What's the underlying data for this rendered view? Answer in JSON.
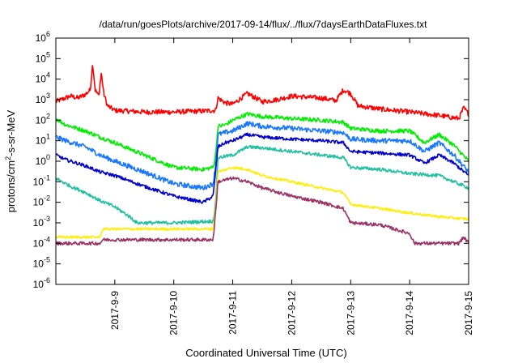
{
  "chart_data": {
    "type": "line",
    "title": "/data/run/goesPlots/archive/2017-09-14/flux/../flux/7daysEarthDataFluxes.txt",
    "xlabel": "Coordinated Universal Time (UTC)",
    "ylabel_base": "protons/cm",
    "ylabel_sup": "2",
    "ylabel_rest": "-s-sr-MeV",
    "yscale": "log",
    "ylim": [
      1e-06,
      1000000.0
    ],
    "xlim": [
      "2017-09-08T00:00",
      "2017-09-15T00:00"
    ],
    "yticks": [
      {
        "value": 1e-06,
        "base": "10",
        "exp": "-6"
      },
      {
        "value": 1e-05,
        "base": "10",
        "exp": "-5"
      },
      {
        "value": 0.0001,
        "base": "10",
        "exp": "-4"
      },
      {
        "value": 0.001,
        "base": "10",
        "exp": "-3"
      },
      {
        "value": 0.01,
        "base": "10",
        "exp": "-2"
      },
      {
        "value": 0.1,
        "base": "10",
        "exp": "-1"
      },
      {
        "value": 1.0,
        "base": "10",
        "exp": "0"
      },
      {
        "value": 10.0,
        "base": "10",
        "exp": "1"
      },
      {
        "value": 100.0,
        "base": "10",
        "exp": "2"
      },
      {
        "value": 1000.0,
        "base": "10",
        "exp": "3"
      },
      {
        "value": 10000.0,
        "base": "10",
        "exp": "4"
      },
      {
        "value": 100000.0,
        "base": "10",
        "exp": "5"
      },
      {
        "value": 1000000.0,
        "base": "10",
        "exp": "6"
      }
    ],
    "xticks": [
      {
        "value": "2017-09-09T00:00",
        "label": "2017-9-9"
      },
      {
        "value": "2017-09-10T00:00",
        "label": "2017-9-10"
      },
      {
        "value": "2017-09-11T00:00",
        "label": "2017-9-11"
      },
      {
        "value": "2017-09-12T00:00",
        "label": "2017-9-12"
      },
      {
        "value": "2017-09-13T00:00",
        "label": "2017-9-13"
      },
      {
        "value": "2017-09-14T00:00",
        "label": "2017-9-14"
      },
      {
        "value": "2017-09-15T00:00",
        "label": "2017-9-15"
      }
    ],
    "grid": false,
    "legend": "none",
    "series": [
      {
        "color": "#ff0000",
        "noise": 0.12,
        "points": [
          [
            "2017-09-08T00:00",
            800
          ],
          [
            "2017-09-08T06:00",
            1500
          ],
          [
            "2017-09-08T09:00",
            1200
          ],
          [
            "2017-09-08T12:00",
            1800
          ],
          [
            "2017-09-08T14:00",
            3000
          ],
          [
            "2017-09-08T15:00",
            60000
          ],
          [
            "2017-09-08T16:00",
            3000
          ],
          [
            "2017-09-08T17:30",
            1500
          ],
          [
            "2017-09-08T18:30",
            20000
          ],
          [
            "2017-09-08T19:30",
            2000
          ],
          [
            "2017-09-08T21:00",
            500
          ],
          [
            "2017-09-09T00:00",
            300
          ],
          [
            "2017-09-09T12:00",
            250
          ],
          [
            "2017-09-10T00:00",
            250
          ],
          [
            "2017-09-10T12:00",
            280
          ],
          [
            "2017-09-10T17:00",
            300
          ],
          [
            "2017-09-10T18:00",
            1200
          ],
          [
            "2017-09-10T21:00",
            700
          ],
          [
            "2017-09-11T00:00",
            600
          ],
          [
            "2017-09-11T06:00",
            2000
          ],
          [
            "2017-09-11T12:00",
            800
          ],
          [
            "2017-09-11T18:00",
            1000
          ],
          [
            "2017-09-12T00:00",
            1500
          ],
          [
            "2017-09-12T12:00",
            1200
          ],
          [
            "2017-09-12T18:00",
            900
          ],
          [
            "2017-09-12T21:00",
            3000
          ],
          [
            "2017-09-13T00:00",
            2000
          ],
          [
            "2017-09-13T03:00",
            500
          ],
          [
            "2017-09-13T12:00",
            350
          ],
          [
            "2017-09-14T00:00",
            250
          ],
          [
            "2017-09-14T12:00",
            170
          ],
          [
            "2017-09-14T20:00",
            120
          ],
          [
            "2017-09-14T22:00",
            400
          ],
          [
            "2017-09-15T00:00",
            200
          ]
        ]
      },
      {
        "color": "#00ee00",
        "noise": 0.1,
        "points": [
          [
            "2017-09-08T00:00",
            120
          ],
          [
            "2017-09-08T04:00",
            60
          ],
          [
            "2017-09-08T12:00",
            30
          ],
          [
            "2017-09-08T18:00",
            15
          ],
          [
            "2017-09-09T00:00",
            8
          ],
          [
            "2017-09-09T12:00",
            2
          ],
          [
            "2017-09-10T00:00",
            0.5
          ],
          [
            "2017-09-10T12:00",
            0.4
          ],
          [
            "2017-09-10T16:00",
            0.5
          ],
          [
            "2017-09-10T17:00",
            2
          ],
          [
            "2017-09-10T18:00",
            50
          ],
          [
            "2017-09-10T21:00",
            60
          ],
          [
            "2017-09-11T00:00",
            100
          ],
          [
            "2017-09-11T06:00",
            200
          ],
          [
            "2017-09-11T12:00",
            150
          ],
          [
            "2017-09-12T00:00",
            120
          ],
          [
            "2017-09-12T12:00",
            100
          ],
          [
            "2017-09-12T21:00",
            80
          ],
          [
            "2017-09-13T00:00",
            40
          ],
          [
            "2017-09-13T12:00",
            30
          ],
          [
            "2017-09-14T00:00",
            30
          ],
          [
            "2017-09-14T06:00",
            8
          ],
          [
            "2017-09-14T12:00",
            20
          ],
          [
            "2017-09-14T18:00",
            6
          ],
          [
            "2017-09-15T00:00",
            1
          ]
        ]
      },
      {
        "color": "#1a78ff",
        "noise": 0.12,
        "points": [
          [
            "2017-09-08T00:00",
            15
          ],
          [
            "2017-09-08T04:00",
            10
          ],
          [
            "2017-09-08T12:00",
            5
          ],
          [
            "2017-09-08T18:00",
            2
          ],
          [
            "2017-09-09T00:00",
            1
          ],
          [
            "2017-09-09T12:00",
            0.3
          ],
          [
            "2017-09-10T00:00",
            0.08
          ],
          [
            "2017-09-10T12:00",
            0.05
          ],
          [
            "2017-09-10T16:00",
            0.08
          ],
          [
            "2017-09-10T17:00",
            0.6
          ],
          [
            "2017-09-10T18:00",
            20
          ],
          [
            "2017-09-10T21:00",
            25
          ],
          [
            "2017-09-11T00:00",
            30
          ],
          [
            "2017-09-11T06:00",
            70
          ],
          [
            "2017-09-11T12:00",
            50
          ],
          [
            "2017-09-12T00:00",
            40
          ],
          [
            "2017-09-12T12:00",
            30
          ],
          [
            "2017-09-12T21:00",
            25
          ],
          [
            "2017-09-13T00:00",
            12
          ],
          [
            "2017-09-13T12:00",
            10
          ],
          [
            "2017-09-14T00:00",
            10
          ],
          [
            "2017-09-14T06:00",
            3
          ],
          [
            "2017-09-14T12:00",
            8
          ],
          [
            "2017-09-14T18:00",
            2
          ],
          [
            "2017-09-15T00:00",
            0.3
          ]
        ]
      },
      {
        "color": "#0000cc",
        "noise": 0.08,
        "points": [
          [
            "2017-09-08T00:00",
            2
          ],
          [
            "2017-09-08T04:00",
            1.2
          ],
          [
            "2017-09-08T12:00",
            0.6
          ],
          [
            "2017-09-08T18:00",
            0.3
          ],
          [
            "2017-09-09T00:00",
            0.2
          ],
          [
            "2017-09-09T12:00",
            0.06
          ],
          [
            "2017-09-10T00:00",
            0.02
          ],
          [
            "2017-09-10T12:00",
            0.01
          ],
          [
            "2017-09-10T16:00",
            0.02
          ],
          [
            "2017-09-10T17:00",
            0.3
          ],
          [
            "2017-09-10T18:00",
            5
          ],
          [
            "2017-09-10T21:00",
            8
          ],
          [
            "2017-09-11T00:00",
            10
          ],
          [
            "2017-09-11T06:00",
            20
          ],
          [
            "2017-09-11T12:00",
            15
          ],
          [
            "2017-09-12T00:00",
            12
          ],
          [
            "2017-09-12T12:00",
            10
          ],
          [
            "2017-09-12T21:00",
            8
          ],
          [
            "2017-09-13T00:00",
            3
          ],
          [
            "2017-09-13T12:00",
            2.5
          ],
          [
            "2017-09-14T00:00",
            2
          ],
          [
            "2017-09-14T06:00",
            0.8
          ],
          [
            "2017-09-14T12:00",
            2
          ],
          [
            "2017-09-14T18:00",
            0.8
          ],
          [
            "2017-09-15T00:00",
            0.2
          ]
        ]
      },
      {
        "color": "#20c0a0",
        "noise": 0.08,
        "points": [
          [
            "2017-09-08T00:00",
            0.15
          ],
          [
            "2017-09-08T06:00",
            0.06
          ],
          [
            "2017-09-08T12:00",
            0.03
          ],
          [
            "2017-09-08T18:00",
            0.012
          ],
          [
            "2017-09-09T00:00",
            0.006
          ],
          [
            "2017-09-09T06:00",
            0.002
          ],
          [
            "2017-09-09T09:00",
            0.001
          ],
          [
            "2017-09-10T00:00",
            0.001
          ],
          [
            "2017-09-10T16:00",
            0.0012
          ],
          [
            "2017-09-10T17:00",
            0.008
          ],
          [
            "2017-09-10T18:00",
            1.5
          ],
          [
            "2017-09-11T00:00",
            2
          ],
          [
            "2017-09-11T06:00",
            5
          ],
          [
            "2017-09-11T12:00",
            4.5
          ],
          [
            "2017-09-12T00:00",
            3
          ],
          [
            "2017-09-12T12:00",
            2
          ],
          [
            "2017-09-12T21:00",
            1.5
          ],
          [
            "2017-09-13T00:00",
            0.5
          ],
          [
            "2017-09-13T12:00",
            0.4
          ],
          [
            "2017-09-14T00:00",
            0.25
          ],
          [
            "2017-09-14T12:00",
            0.2
          ],
          [
            "2017-09-15T00:00",
            0.05
          ]
        ]
      },
      {
        "color": "#ffee00",
        "noise": 0.06,
        "points": [
          [
            "2017-09-08T00:00",
            0.0002
          ],
          [
            "2017-09-08T18:00",
            0.0002
          ],
          [
            "2017-09-08T19:00",
            0.0005
          ],
          [
            "2017-09-09T00:00",
            0.0005
          ],
          [
            "2017-09-10T00:00",
            0.0005
          ],
          [
            "2017-09-10T16:00",
            0.0005
          ],
          [
            "2017-09-10T17:00",
            0.005
          ],
          [
            "2017-09-10T18:00",
            0.3
          ],
          [
            "2017-09-11T00:00",
            0.5
          ],
          [
            "2017-09-11T06:00",
            0.4
          ],
          [
            "2017-09-11T12:00",
            0.2
          ],
          [
            "2017-09-12T00:00",
            0.1
          ],
          [
            "2017-09-12T12:00",
            0.05
          ],
          [
            "2017-09-12T21:00",
            0.03
          ],
          [
            "2017-09-13T00:00",
            0.008
          ],
          [
            "2017-09-13T12:00",
            0.005
          ],
          [
            "2017-09-14T00:00",
            0.003
          ],
          [
            "2017-09-14T12:00",
            0.002
          ],
          [
            "2017-09-15T00:00",
            0.0015
          ]
        ]
      },
      {
        "color": "#993366",
        "noise": 0.08,
        "points": [
          [
            "2017-09-08T00:00",
            0.0001
          ],
          [
            "2017-09-08T18:00",
            0.0001
          ],
          [
            "2017-09-08T19:00",
            0.00015
          ],
          [
            "2017-09-10T16:00",
            0.00015
          ],
          [
            "2017-09-10T17:00",
            0.003
          ],
          [
            "2017-09-10T18:00",
            0.1
          ],
          [
            "2017-09-11T00:00",
            0.15
          ],
          [
            "2017-09-11T06:00",
            0.1
          ],
          [
            "2017-09-11T12:00",
            0.05
          ],
          [
            "2017-09-12T00:00",
            0.02
          ],
          [
            "2017-09-12T12:00",
            0.01
          ],
          [
            "2017-09-12T21:00",
            0.005
          ],
          [
            "2017-09-13T00:00",
            0.001
          ],
          [
            "2017-09-13T12:00",
            0.0008
          ],
          [
            "2017-09-14T00:00",
            0.0003
          ],
          [
            "2017-09-14T02:00",
            0.0001
          ],
          [
            "2017-09-14T20:00",
            0.0001
          ],
          [
            "2017-09-14T22:00",
            0.0002
          ],
          [
            "2017-09-15T00:00",
            0.0001
          ]
        ]
      }
    ]
  }
}
